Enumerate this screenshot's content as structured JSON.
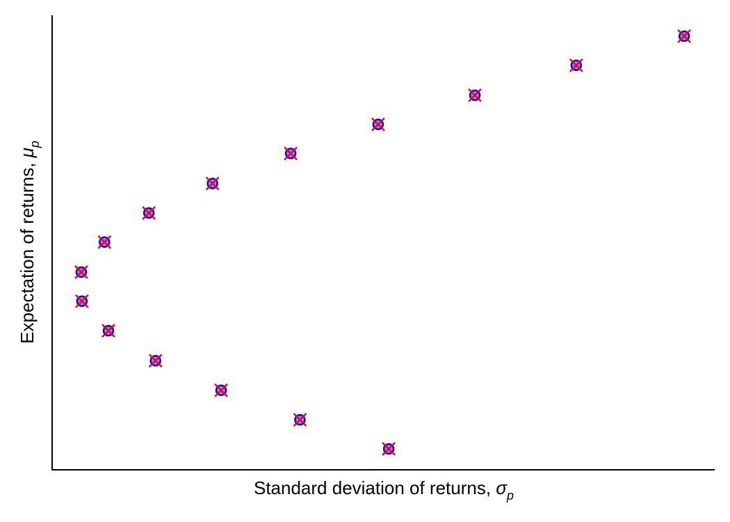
{
  "chart_data": {
    "type": "scatter",
    "xlabel": "Standard deviation of returns, ",
    "xlabel_symbol": "σ",
    "xlabel_subscript": "p",
    "ylabel": "Expectation of returns, ",
    "ylabel_symbol": "μ",
    "ylabel_subscript": "p",
    "xlim": [
      0,
      100
    ],
    "ylim": [
      0,
      100
    ],
    "series": [
      {
        "marker": "circle",
        "color": "#0000ff",
        "x": [
          95.4,
          79.1,
          63.8,
          49.2,
          36.0,
          24.2,
          14.6,
          7.9,
          4.4,
          4.5,
          8.5,
          15.6,
          25.5,
          37.4,
          50.8
        ],
        "values": [
          95.4,
          89.0,
          82.4,
          76.0,
          69.6,
          63.0,
          56.5,
          50.1,
          43.5,
          37.1,
          30.6,
          24.0,
          17.5,
          11.0,
          4.6
        ]
      },
      {
        "marker": "x",
        "color": "#ff0000",
        "x": [
          95.4,
          79.1,
          63.8,
          49.2,
          36.0,
          24.2,
          14.6,
          7.9,
          4.4,
          4.5,
          8.5,
          15.6,
          25.5,
          37.4,
          50.8
        ],
        "values": [
          95.4,
          89.0,
          82.4,
          76.0,
          69.6,
          63.0,
          56.5,
          50.1,
          43.5,
          37.1,
          30.6,
          24.0,
          17.5,
          11.0,
          4.6
        ]
      }
    ]
  }
}
